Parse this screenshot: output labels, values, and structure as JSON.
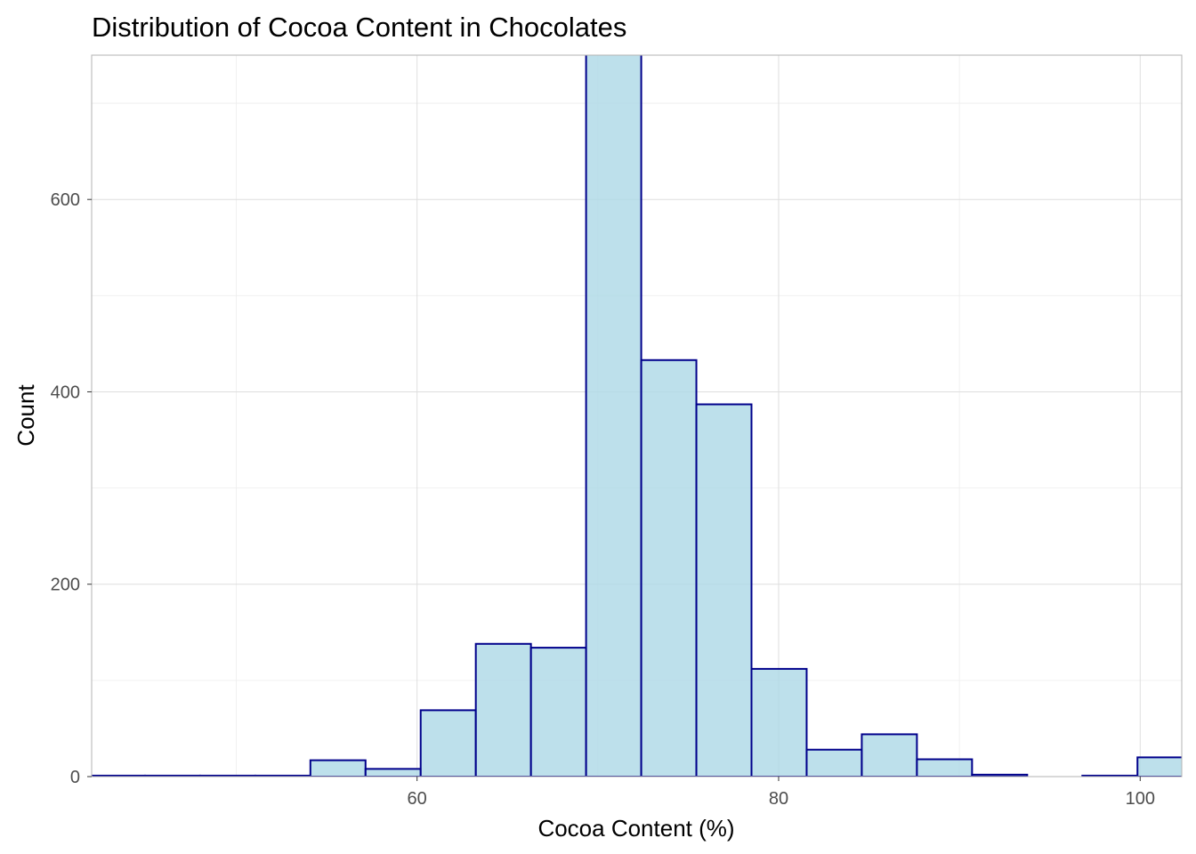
{
  "chart_data": {
    "type": "bar",
    "title": "Distribution of Cocoa Content in Chocolates",
    "xlabel": "Cocoa Content (%)",
    "ylabel": "Count",
    "xlim": [
      42,
      102.3
    ],
    "ylim": [
      0,
      750
    ],
    "x_ticks": [
      60,
      80,
      100
    ],
    "y_ticks": [
      0,
      200,
      400,
      600
    ],
    "bin_width": 3.05,
    "bins": [
      {
        "x0": 41.9,
        "x1": 44.95,
        "count": 1
      },
      {
        "x0": 44.95,
        "x1": 48.0,
        "count": 1
      },
      {
        "x0": 48.0,
        "x1": 51.05,
        "count": 1
      },
      {
        "x0": 51.05,
        "x1": 54.1,
        "count": 1
      },
      {
        "x0": 54.1,
        "x1": 57.15,
        "count": 17
      },
      {
        "x0": 57.15,
        "x1": 60.2,
        "count": 8
      },
      {
        "x0": 60.2,
        "x1": 63.25,
        "count": 69
      },
      {
        "x0": 63.25,
        "x1": 66.3,
        "count": 138
      },
      {
        "x0": 66.3,
        "x1": 69.35,
        "count": 134
      },
      {
        "x0": 69.35,
        "x1": 72.4,
        "count": 760
      },
      {
        "x0": 72.4,
        "x1": 75.45,
        "count": 433
      },
      {
        "x0": 75.45,
        "x1": 78.5,
        "count": 387
      },
      {
        "x0": 78.5,
        "x1": 81.55,
        "count": 112
      },
      {
        "x0": 81.55,
        "x1": 84.6,
        "count": 28
      },
      {
        "x0": 84.6,
        "x1": 87.65,
        "count": 44
      },
      {
        "x0": 87.65,
        "x1": 90.7,
        "count": 18
      },
      {
        "x0": 90.7,
        "x1": 93.75,
        "count": 2
      },
      {
        "x0": 93.75,
        "x1": 96.8,
        "count": 0
      },
      {
        "x0": 96.8,
        "x1": 99.85,
        "count": 1
      },
      {
        "x0": 99.85,
        "x1": 102.9,
        "count": 20
      }
    ],
    "grid": true,
    "colors": {
      "fill": "#add8e6",
      "outline": "#00008b"
    }
  }
}
